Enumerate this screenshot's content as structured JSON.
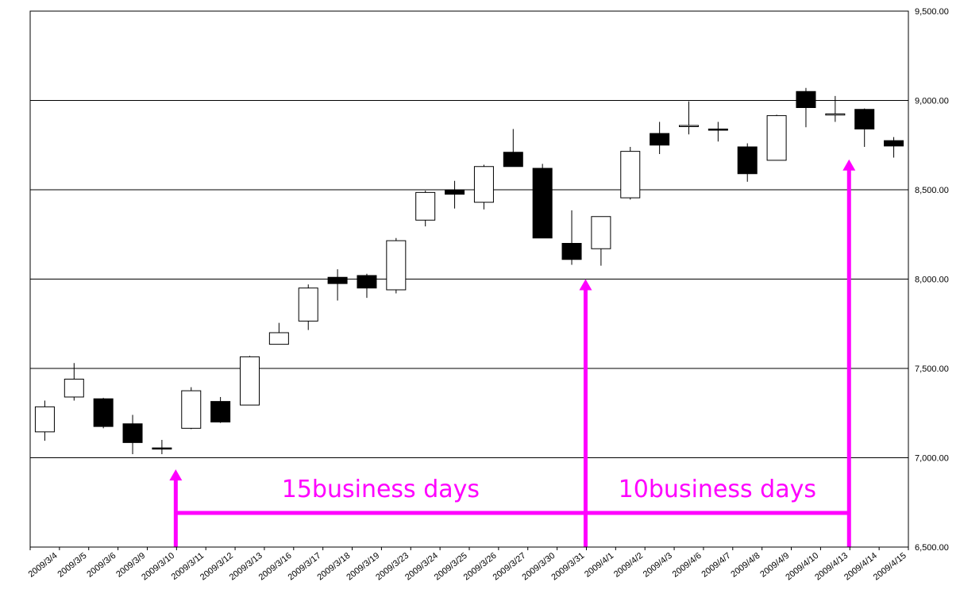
{
  "chart_data": {
    "type": "candlestick",
    "y_axis_position": "right",
    "ylim": [
      6500,
      9500
    ],
    "ytick_labels": [
      "9,500.00",
      "9,000.00",
      "8,500.00",
      "8,000.00",
      "7,500.00",
      "7,000.00",
      "6,500.00"
    ],
    "ytick_values": [
      9500,
      9000,
      8500,
      8000,
      7500,
      7000,
      6500
    ],
    "grid": true,
    "categories": [
      "2009/3/4",
      "2009/3/5",
      "2009/3/6",
      "2009/3/9",
      "2009/3/10",
      "2009/3/11",
      "2009/3/12",
      "2009/3/13",
      "2009/3/16",
      "2009/3/17",
      "2009/3/18",
      "2009/3/19",
      "2009/3/23",
      "2009/3/24",
      "2009/3/25",
      "2009/3/26",
      "2009/3/27",
      "2009/3/30",
      "2009/3/31",
      "2009/4/1",
      "2009/4/2",
      "2009/4/3",
      "2009/4/6",
      "2009/4/7",
      "2009/4/8",
      "2009/4/9",
      "2009/4/10",
      "2009/4/13",
      "2009/4/14",
      "2009/4/15"
    ],
    "candles": [
      {
        "open": 7145,
        "high": 7320,
        "low": 7095,
        "close": 7285
      },
      {
        "open": 7340,
        "high": 7530,
        "low": 7320,
        "close": 7440
      },
      {
        "open": 7330,
        "high": 7335,
        "low": 7165,
        "close": 7175
      },
      {
        "open": 7190,
        "high": 7240,
        "low": 7020,
        "close": 7085
      },
      {
        "open": 7055,
        "high": 7100,
        "low": 7020,
        "close": 7050
      },
      {
        "open": 7165,
        "high": 7395,
        "low": 7160,
        "close": 7375
      },
      {
        "open": 7315,
        "high": 7340,
        "low": 7195,
        "close": 7200
      },
      {
        "open": 7295,
        "high": 7570,
        "low": 7295,
        "close": 7565
      },
      {
        "open": 7635,
        "high": 7755,
        "low": 7635,
        "close": 7700
      },
      {
        "open": 7765,
        "high": 7970,
        "low": 7715,
        "close": 7950
      },
      {
        "open": 8010,
        "high": 8055,
        "low": 7880,
        "close": 7975
      },
      {
        "open": 8020,
        "high": 8030,
        "low": 7895,
        "close": 7950
      },
      {
        "open": 7940,
        "high": 8230,
        "low": 7920,
        "close": 8215
      },
      {
        "open": 8330,
        "high": 8495,
        "low": 8295,
        "close": 8485
      },
      {
        "open": 8500,
        "high": 8550,
        "low": 8395,
        "close": 8475
      },
      {
        "open": 8430,
        "high": 8640,
        "low": 8390,
        "close": 8630
      },
      {
        "open": 8710,
        "high": 8840,
        "low": 8630,
        "close": 8630
      },
      {
        "open": 8620,
        "high": 8645,
        "low": 8230,
        "close": 8230
      },
      {
        "open": 8200,
        "high": 8385,
        "low": 8080,
        "close": 8110
      },
      {
        "open": 8170,
        "high": 8350,
        "low": 8075,
        "close": 8350
      },
      {
        "open": 8455,
        "high": 8740,
        "low": 8445,
        "close": 8715
      },
      {
        "open": 8815,
        "high": 8880,
        "low": 8700,
        "close": 8750
      },
      {
        "open": 8855,
        "high": 8995,
        "low": 8810,
        "close": 8860
      },
      {
        "open": 8840,
        "high": 8880,
        "low": 8770,
        "close": 8835
      },
      {
        "open": 8740,
        "high": 8760,
        "low": 8545,
        "close": 8590
      },
      {
        "open": 8665,
        "high": 8920,
        "low": 8665,
        "close": 8915
      },
      {
        "open": 9050,
        "high": 9070,
        "low": 8850,
        "close": 8960
      },
      {
        "open": 8925,
        "high": 9025,
        "low": 8880,
        "close": 8925
      },
      {
        "open": 8950,
        "high": 8955,
        "low": 8740,
        "close": 8840
      },
      {
        "open": 8775,
        "high": 8795,
        "low": 8680,
        "close": 8745
      }
    ],
    "annotations": [
      {
        "text": "15business days",
        "from_category": "2009/3/10",
        "to_category": "2009/3/31",
        "arrow_tip_values": [
          6935,
          8000
        ]
      },
      {
        "text": "10business days",
        "from_category": "2009/3/31",
        "to_category": "2009/4/13",
        "arrow_tip_values": [
          8000,
          8670
        ]
      }
    ],
    "annotation_color": "#ff00ff",
    "up_color": "#ffffff",
    "down_color": "#000000"
  }
}
